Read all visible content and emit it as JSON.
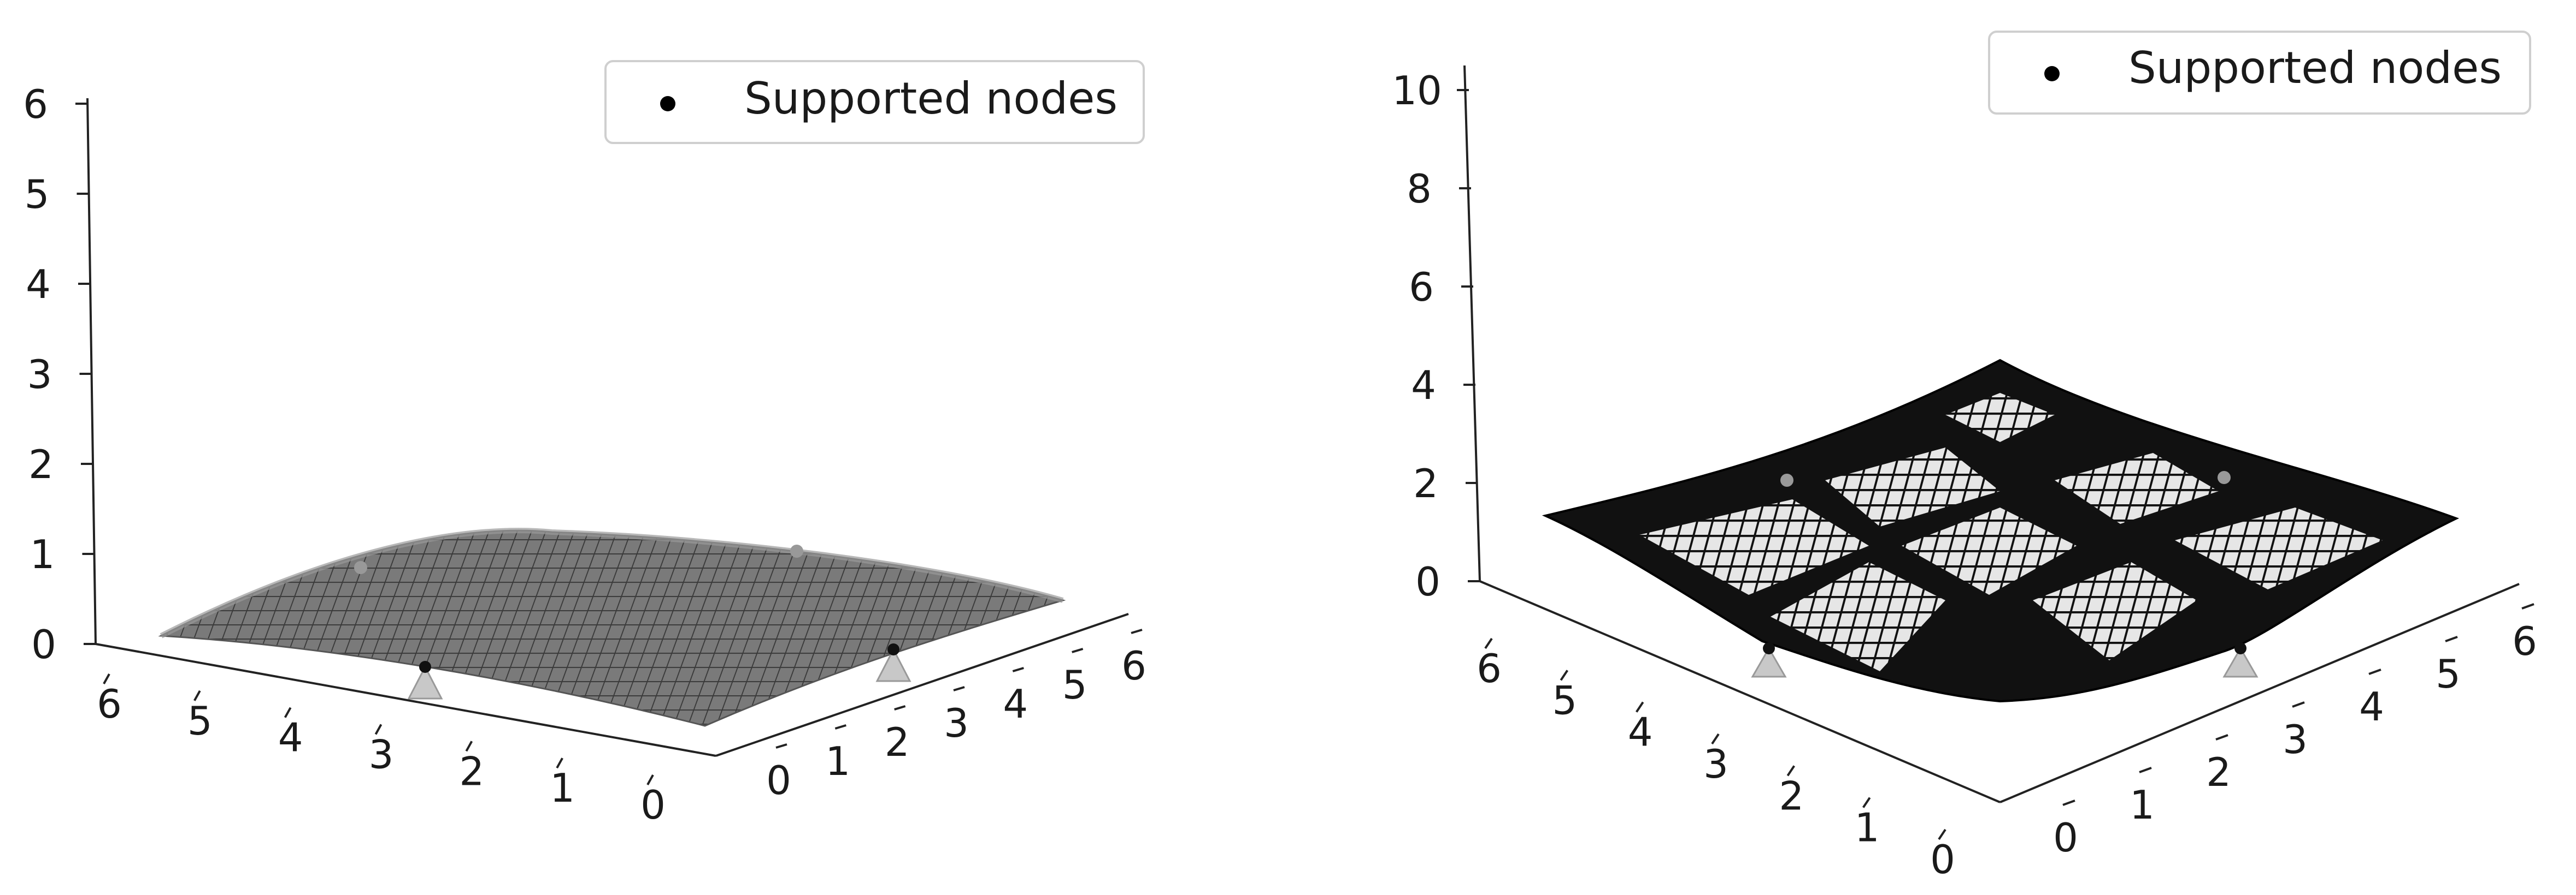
{
  "chart_data": [
    {
      "type": "surface3d",
      "description_of_marks": "nearly flat gently domed surface supported at corner nodes",
      "z_ticks": [
        "0",
        "1",
        "2",
        "3",
        "4",
        "5",
        "6"
      ],
      "x_ticks": [
        "6",
        "5",
        "4",
        "3",
        "2",
        "1",
        "0"
      ],
      "y_ticks": [
        "0",
        "1",
        "2",
        "3",
        "4",
        "5",
        "6"
      ],
      "zlim": [
        0,
        6
      ],
      "xlim": [
        0,
        6
      ],
      "ylim": [
        0,
        6
      ],
      "surface_peak_z": 1.3,
      "support_markers": 4,
      "legend": {
        "label": "Supported nodes",
        "position": "upper-right"
      },
      "surface_color": "#777777",
      "support_color": "#bdbdbd"
    },
    {
      "type": "surface3d",
      "z_ticks": [
        "0",
        "2",
        "4",
        "6",
        "8",
        "10"
      ],
      "x_ticks": [
        "6",
        "5",
        "4",
        "3",
        "2",
        "1",
        "0"
      ],
      "y_ticks": [
        "0",
        "1",
        "2",
        "3",
        "4",
        "5",
        "6"
      ],
      "zlim": [
        0,
        10
      ],
      "xlim": [
        0,
        6
      ],
      "ylim": [
        0,
        6
      ],
      "surface_peak_z": 4.2,
      "support_markers": 4,
      "legend": {
        "label": "Supported nodes",
        "position": "upper-right"
      },
      "surface_color": "#111111",
      "support_color": "#bdbdbd"
    }
  ]
}
